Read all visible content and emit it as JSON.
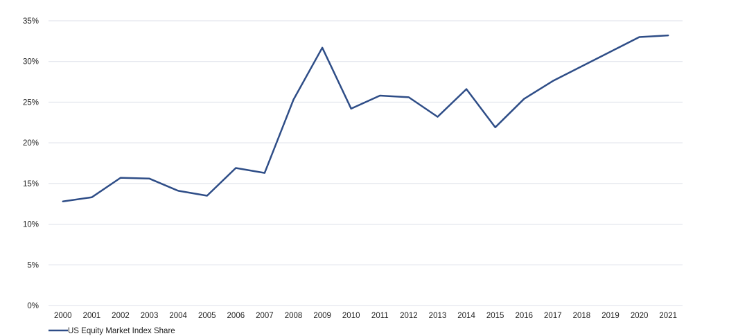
{
  "chart_data": {
    "type": "line",
    "x": [
      "2000",
      "2001",
      "2002",
      "2003",
      "2004",
      "2005",
      "2006",
      "2007",
      "2008",
      "2009",
      "2010",
      "2011",
      "2012",
      "2013",
      "2014",
      "2015",
      "2016",
      "2017",
      "2018",
      "2019",
      "2020",
      "2021"
    ],
    "series": [
      {
        "name": "US Equity Market Index Share",
        "values": [
          12.8,
          13.3,
          15.7,
          15.6,
          14.1,
          13.5,
          16.9,
          16.3,
          25.3,
          31.7,
          24.2,
          25.8,
          25.6,
          23.2,
          26.6,
          21.9,
          25.4,
          27.6,
          29.4,
          31.2,
          33.0,
          33.2
        ]
      }
    ],
    "yticks": [
      "0%",
      "5%",
      "10%",
      "15%",
      "20%",
      "25%",
      "30%",
      "35%"
    ],
    "ylim": [
      0,
      35
    ],
    "grid": true,
    "legend_position": "bottom-left",
    "colors": {
      "line": "#2e4d87",
      "grid": "#dcdfe8"
    }
  }
}
